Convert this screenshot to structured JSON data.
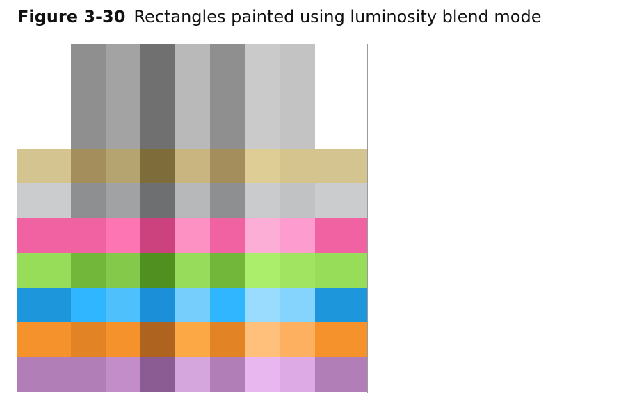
{
  "caption": {
    "number": "Figure 3-30",
    "text": "Rectangles painted using luminosity blend mode"
  },
  "figure": {
    "top_row": [
      "#ffffff",
      "#8f8f8f",
      "#a3a3a3",
      "#707070",
      "#b9b9b9",
      "#8f8f8f",
      "#cacaca",
      "#c3c3c3",
      "#ffffff"
    ],
    "bands": [
      [
        "#d4c490",
        "#a48f5c",
        "#b5a470",
        "#7e6d3a",
        "#c8b57f",
        "#a48f5c",
        "#dfcd96",
        "#d6c48e",
        "#d4c490"
      ],
      [
        "#cbcccd",
        "#8e8f91",
        "#a1a2a4",
        "#6e6f71",
        "#b7b8ba",
        "#8e8f91",
        "#cacbcd",
        "#c1c2c4",
        "#cbcccd"
      ],
      [
        "#f062a1",
        "#f062a1",
        "#fd75b2",
        "#cc427f",
        "#fe91c3",
        "#f062a1",
        "#fcaed6",
        "#fd9cce",
        "#f062a1"
      ],
      [
        "#97dd5a",
        "#72b63a",
        "#85c94b",
        "#4f9021",
        "#98dc5c",
        "#72b63a",
        "#aaee6b",
        "#a0e461",
        "#97dd5a"
      ],
      [
        "#1d96dc",
        "#30b6fe",
        "#4ec1fd",
        "#1b8fd8",
        "#76cefd",
        "#30b6fe",
        "#9adcfe",
        "#84d4fd",
        "#1d96dc"
      ],
      [
        "#f5922c",
        "#e28425",
        "#f5922c",
        "#ae631f",
        "#fca845",
        "#e28425",
        "#fec07b",
        "#fdb05f",
        "#f5922c"
      ],
      [
        "#b17eb8",
        "#b17eb8",
        "#c28dc9",
        "#8b5c93",
        "#d5a6dd",
        "#b17eb8",
        "#e8b7ef",
        "#deaae5",
        "#b17eb8"
      ]
    ]
  }
}
